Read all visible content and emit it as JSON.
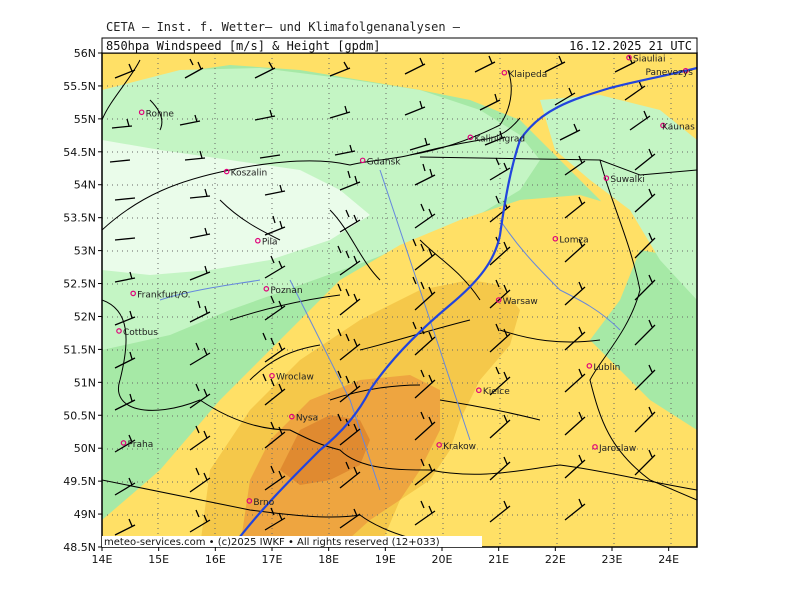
{
  "header": {
    "agency": "CETA — Inst. f. Wetter— und Klimafolgenanalysen —",
    "product": "850hpa Windspeed [m/s] & Height [gpdm]",
    "valid": "16.12.2025 21 UTC",
    "footer": "meteo-services.com • (c)2025 IWKF • All rights reserved (12+033)"
  },
  "axes": {
    "lon_ticks": [
      "14E",
      "15E",
      "16E",
      "17E",
      "18E",
      "19E",
      "20E",
      "21E",
      "22E",
      "23E",
      "24E"
    ],
    "lat_ticks": [
      "56N",
      "55.5N",
      "55N",
      "54.5N",
      "54N",
      "53.5N",
      "53N",
      "52.5N",
      "52N",
      "51.5N",
      "51N",
      "50.5N",
      "50N",
      "49.5N",
      "49N",
      "48.5N"
    ],
    "lon_range": [
      14,
      24.5
    ],
    "lat_range": [
      48.5,
      56
    ]
  },
  "cities": [
    {
      "name": "Ronne",
      "lon": 14.7,
      "lat": 55.1
    },
    {
      "name": "Klaipeda",
      "lon": 21.1,
      "lat": 55.7
    },
    {
      "name": "Siauliai",
      "lon": 23.3,
      "lat": 55.93
    },
    {
      "name": "Panevezys",
      "lon": 24.3,
      "lat": 55.73
    },
    {
      "name": "Kaunas",
      "lon": 23.9,
      "lat": 54.9
    },
    {
      "name": "Kaliningrad",
      "lon": 20.5,
      "lat": 54.72
    },
    {
      "name": "Gdansk",
      "lon": 18.6,
      "lat": 54.37
    },
    {
      "name": "Koszalin",
      "lon": 16.2,
      "lat": 54.2
    },
    {
      "name": "Suwalki",
      "lon": 22.9,
      "lat": 54.1
    },
    {
      "name": "Lomza",
      "lon": 22.0,
      "lat": 53.18
    },
    {
      "name": "Pila",
      "lon": 16.75,
      "lat": 53.15
    },
    {
      "name": "Poznan",
      "lon": 16.9,
      "lat": 52.42
    },
    {
      "name": "Frankfurt/O.",
      "lon": 14.55,
      "lat": 52.35
    },
    {
      "name": "Warsaw",
      "lon": 21.0,
      "lat": 52.25
    },
    {
      "name": "Cottbus",
      "lon": 14.3,
      "lat": 51.78
    },
    {
      "name": "Lublin",
      "lon": 22.6,
      "lat": 51.25
    },
    {
      "name": "Wroclaw",
      "lon": 17.0,
      "lat": 51.1
    },
    {
      "name": "Kielce",
      "lon": 20.65,
      "lat": 50.88
    },
    {
      "name": "Nysa",
      "lon": 17.35,
      "lat": 50.48
    },
    {
      "name": "Praha",
      "lon": 14.38,
      "lat": 50.08
    },
    {
      "name": "Krakow",
      "lon": 19.95,
      "lat": 50.05
    },
    {
      "name": "Jaroslaw",
      "lon": 22.7,
      "lat": 50.02
    },
    {
      "name": "Brno",
      "lon": 16.6,
      "lat": 49.2
    }
  ],
  "colors": {
    "wind_lightest": "#eafcea",
    "wind_light": "#c4f5c4",
    "wind_mid": "#a6e9a6",
    "wind_yellow": "#ffe066",
    "wind_yellow2": "#f5c84a",
    "wind_orange": "#eea540",
    "wind_dark_orange": "#e08a30",
    "height_contour": "#2244dd",
    "rivers": "#6688dd",
    "borders": "#000000",
    "city_marker": "#e0007a"
  }
}
